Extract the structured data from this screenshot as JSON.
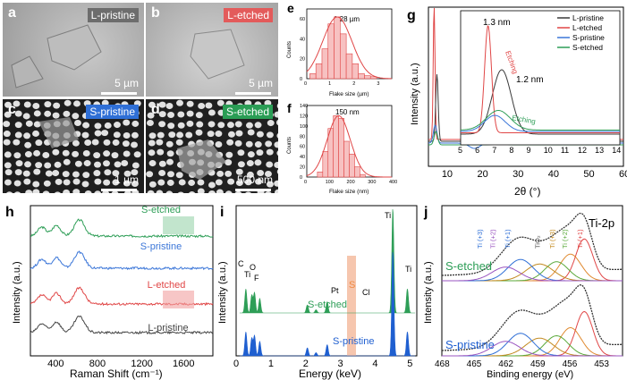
{
  "panels": {
    "a": {
      "letter": "a",
      "label": "L-pristine",
      "label_color": "#6d6d6d",
      "scale": "5 µm"
    },
    "b": {
      "letter": "b",
      "label": "L-etched",
      "label_color": "#e35b5b",
      "scale": "5 µm"
    },
    "c": {
      "letter": "c",
      "label": "S-pristine",
      "label_color": "#2f6fd6",
      "scale": "1 µm"
    },
    "d": {
      "letter": "d",
      "label": "S-etched",
      "label_color": "#2a9d55",
      "scale": "500 nm"
    },
    "e": {
      "letter": "e",
      "annotation": "1.28 µm",
      "ylabel": "Counts",
      "xlabel": "Flake size (µm)"
    },
    "f": {
      "letter": "f",
      "annotation": "150 nm",
      "ylabel": "Counts",
      "xlabel": "Flake size (nm)"
    },
    "g": {
      "letter": "g",
      "ylabel": "Intensity (a.u.)",
      "xlabel": "2θ (°)",
      "peak1": "1.3 nm",
      "peak2": "1.2 nm",
      "etching1": "Etching",
      "etching2": "Etching"
    },
    "h": {
      "letter": "h",
      "ylabel": "Intensity (a.u.)",
      "xlabel": "Raman Shift (cm⁻¹)"
    },
    "i": {
      "letter": "i",
      "ylabel": "Intensity (a.u.)",
      "xlabel": "Energy (keV)",
      "el_c": "C",
      "el_ti1": "Ti",
      "el_o": "O",
      "el_f": "F",
      "el_pt": "Pt",
      "el_s": "S",
      "el_cl": "Cl",
      "el_ti2": "Ti",
      "el_ti3": "Ti",
      "lbl_etched": "S-etched",
      "lbl_pristine": "S-pristine"
    },
    "j": {
      "letter": "j",
      "title": "Ti-2p",
      "ylabel": "Intensity (a.u.)",
      "xlabel": "Binding energy (eV)",
      "lbl_top": "S-etched",
      "lbl_bottom": "S-pristine",
      "peaks": [
        "Ti (+3)",
        "Ti (+2)",
        "Ti (+1)",
        "TiO₂",
        "Ti (+3)",
        "Ti (+2)",
        "Ti (+1)"
      ]
    }
  },
  "chart_data": [
    {
      "type": "bar",
      "panel": "e",
      "x": [
        0.25,
        0.5,
        0.75,
        1.0,
        1.25,
        1.5,
        1.75,
        2.0,
        2.25,
        2.5,
        2.75
      ],
      "values": [
        5,
        15,
        30,
        55,
        62,
        45,
        25,
        15,
        5,
        3,
        2
      ],
      "xticks": [
        0,
        1,
        2,
        3
      ],
      "yticks": [
        0,
        20,
        40,
        60
      ],
      "xlim": [
        0,
        3.5
      ],
      "ylim": [
        0,
        70
      ]
    },
    {
      "type": "bar",
      "panel": "f",
      "x": [
        62.5,
        87.5,
        112.5,
        137.5,
        162.5,
        187.5,
        212.5,
        237.5,
        262.5
      ],
      "values": [
        10,
        50,
        95,
        120,
        115,
        70,
        45,
        20,
        5
      ],
      "xticks": [
        0,
        100,
        200,
        300,
        400
      ],
      "yticks": [
        0,
        20,
        40,
        60,
        80,
        100,
        120,
        140
      ],
      "xlim": [
        0,
        400
      ],
      "ylim": [
        0,
        140
      ]
    },
    {
      "type": "line",
      "panel": "g",
      "xticks": [
        10,
        20,
        30,
        40,
        50,
        60
      ],
      "xlim": [
        5,
        60
      ],
      "inset_xticks": [
        5,
        6,
        7,
        8,
        9,
        10,
        11,
        12,
        13,
        14
      ],
      "series": [
        {
          "name": "L-pristine",
          "color": "#3a3a3a"
        },
        {
          "name": "L-etched",
          "color": "#e04646"
        },
        {
          "name": "S-pristine",
          "color": "#3b76d8"
        },
        {
          "name": "S-etched",
          "color": "#2e9e57"
        }
      ]
    },
    {
      "type": "line",
      "panel": "h",
      "xticks": [
        400,
        800,
        1200,
        1600
      ],
      "xlim": [
        150,
        1900
      ],
      "series": [
        {
          "name": "S-etched",
          "color": "#2e9e57"
        },
        {
          "name": "S-pristine",
          "color": "#3b76d8"
        },
        {
          "name": "L-etched",
          "color": "#e04646"
        },
        {
          "name": "L-pristine",
          "color": "#444444"
        }
      ]
    },
    {
      "type": "bar",
      "panel": "i",
      "xticks": [
        0,
        1,
        2,
        3,
        4,
        5
      ],
      "xlim": [
        0,
        5.2
      ],
      "series": [
        {
          "name": "S-etched",
          "color": "#2e9e57"
        },
        {
          "name": "S-pristine",
          "color": "#1f5fd0"
        }
      ]
    },
    {
      "type": "line",
      "panel": "j",
      "xticks": [
        468,
        465,
        462,
        459,
        456,
        453
      ],
      "xlim": [
        468,
        451
      ]
    }
  ]
}
